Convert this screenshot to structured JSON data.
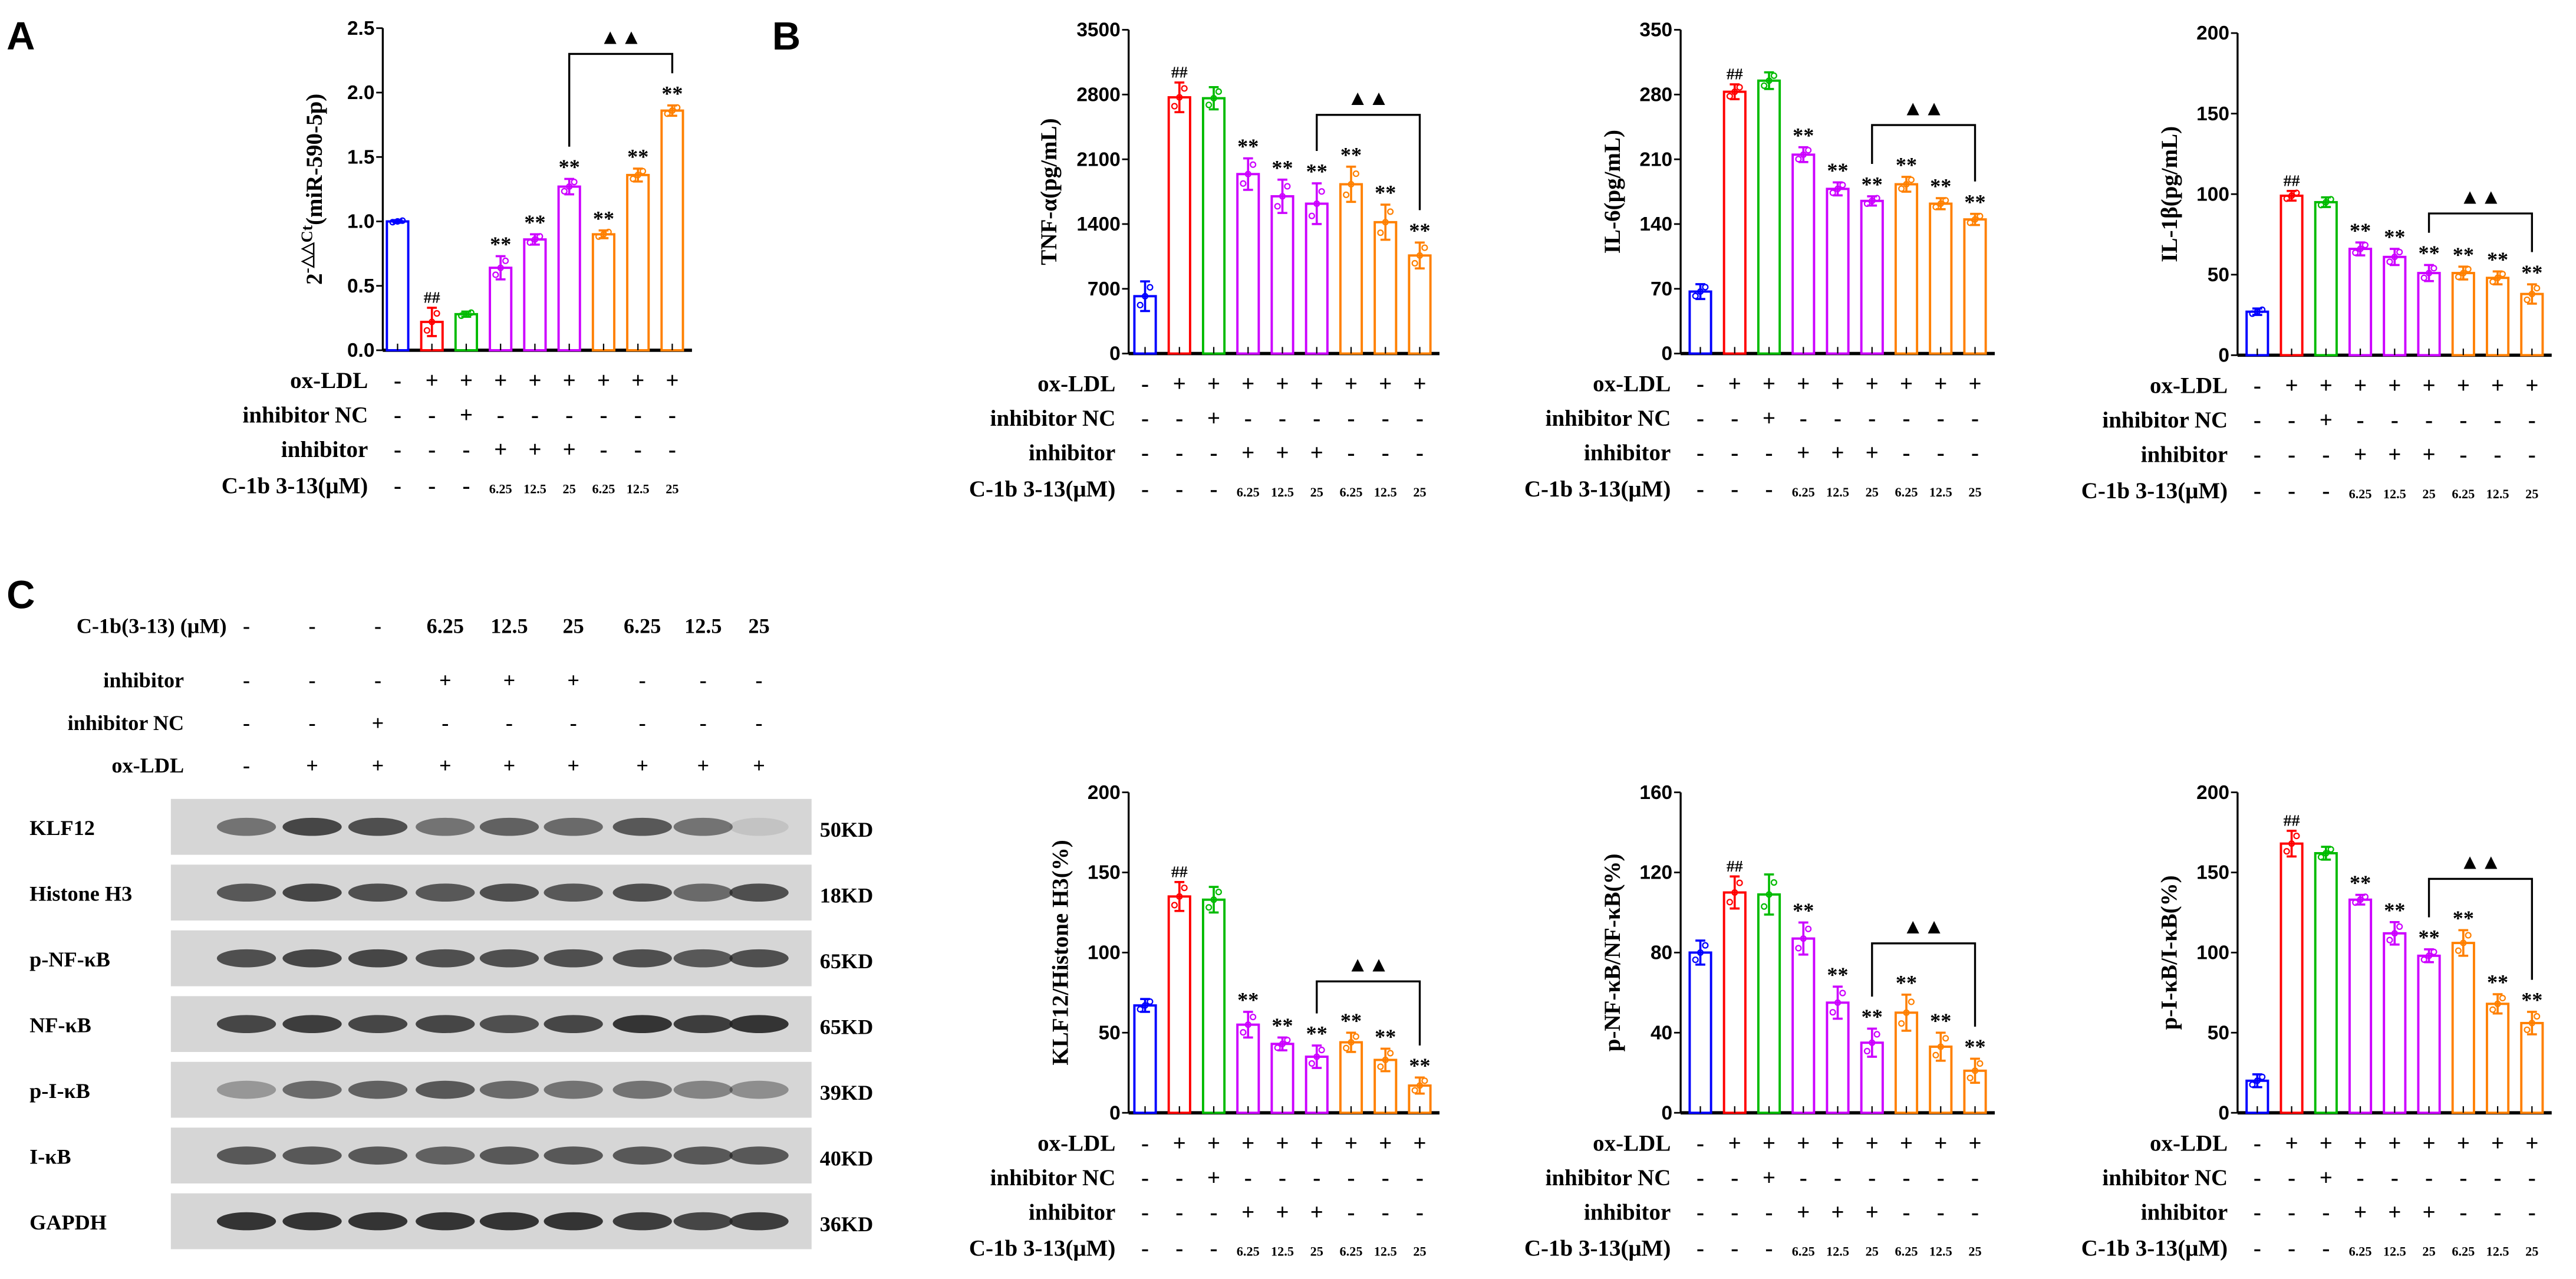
{
  "panel_labels": {
    "a": "A",
    "b": "B",
    "c": "C"
  },
  "colors": {
    "control": "#0000ff",
    "model": "#ff0000",
    "inhibitor_nc": "#00bb00",
    "inhibitor": "#cc00ff",
    "compound": "#ff8000"
  },
  "conditions": {
    "rows": [
      {
        "label": "ox-LDL",
        "values": [
          "-",
          "+",
          "+",
          "+",
          "+",
          "+",
          "+",
          "+",
          "+"
        ]
      },
      {
        "label": "inhibitor NC",
        "values": [
          "-",
          "-",
          "+",
          "-",
          "-",
          "-",
          "-",
          "-",
          "-"
        ]
      },
      {
        "label": "inhibitor",
        "values": [
          "-",
          "-",
          "-",
          "+",
          "+",
          "+",
          "-",
          "-",
          "-"
        ]
      },
      {
        "label": "C-1b 3-13(μM)",
        "values": [
          "-",
          "-",
          "-",
          "6.25",
          "12.5",
          "25",
          "6.25",
          "12.5",
          "25"
        ]
      }
    ]
  },
  "bracket_symbol": "▲▲",
  "chart_data": [
    {
      "id": "mir590",
      "type": "bar",
      "ylabel": "(miR-590-5p)",
      "ylabel_base": "2",
      "ylabel_sup": "-△△Ct",
      "ylim": [
        0,
        2.5
      ],
      "ticks": [
        "0.0",
        "0.5",
        "1.0",
        "1.5",
        "2.0",
        "2.5"
      ],
      "values": [
        1.0,
        0.22,
        0.28,
        0.64,
        0.86,
        1.27,
        0.9,
        1.36,
        1.86
      ],
      "errors": [
        0.01,
        0.11,
        0.02,
        0.09,
        0.04,
        0.06,
        0.03,
        0.05,
        0.04
      ],
      "marks": [
        "",
        "##",
        "",
        "**",
        "**",
        "**",
        "**",
        "**",
        "**"
      ]
    },
    {
      "id": "tnf",
      "type": "bar",
      "ylabel": "TNF-α(pg/mL)",
      "ylim": [
        0,
        3500
      ],
      "ticks": [
        "0",
        "700",
        "1400",
        "2100",
        "2800",
        "3500"
      ],
      "values": [
        620,
        2770,
        2760,
        1940,
        1700,
        1620,
        1830,
        1420,
        1060
      ],
      "errors": [
        160,
        160,
        120,
        170,
        180,
        220,
        190,
        190,
        140
      ],
      "marks": [
        "",
        "##",
        "",
        "**",
        "**",
        "**",
        "**",
        "**",
        "**"
      ]
    },
    {
      "id": "il6",
      "type": "bar",
      "ylabel": "IL-6(pg/mL)",
      "ylim": [
        0,
        350
      ],
      "ticks": [
        "0",
        "70",
        "140",
        "210",
        "280",
        "350"
      ],
      "values": [
        67,
        283,
        295,
        215,
        178,
        165,
        183,
        162,
        145
      ],
      "errors": [
        8,
        8,
        9,
        8,
        7,
        5,
        8,
        6,
        6
      ],
      "marks": [
        "",
        "##",
        "",
        "**",
        "**",
        "**",
        "**",
        "**",
        "**"
      ]
    },
    {
      "id": "il1b",
      "type": "bar",
      "ylabel": "IL-1β(pg/mL)",
      "ylim": [
        0,
        200
      ],
      "ticks": [
        "0",
        "50",
        "100",
        "150",
        "200"
      ],
      "values": [
        27,
        99,
        95,
        66,
        61,
        51,
        51,
        48,
        38
      ],
      "errors": [
        2,
        3,
        3,
        4,
        5,
        5,
        4,
        4,
        6
      ],
      "marks": [
        "",
        "##",
        "",
        "**",
        "**",
        "**",
        "**",
        "**",
        "**"
      ]
    },
    {
      "id": "klf12",
      "type": "bar",
      "ylabel": "KLF12/Histone H3(%)",
      "ylim": [
        0,
        200
      ],
      "ticks": [
        "0",
        "50",
        "100",
        "150",
        "200"
      ],
      "values": [
        67,
        135,
        133,
        55,
        43,
        35,
        44,
        33,
        17
      ],
      "errors": [
        4,
        9,
        8,
        8,
        4,
        7,
        6,
        7,
        5
      ],
      "marks": [
        "",
        "##",
        "",
        "**",
        "**",
        "**",
        "**",
        "**",
        "**"
      ]
    },
    {
      "id": "pnfkb",
      "type": "bar",
      "ylabel": "p-NF-κB/NF-κB(%)",
      "ylim": [
        0,
        160
      ],
      "ticks": [
        "0",
        "40",
        "80",
        "120",
        "160"
      ],
      "values": [
        80,
        110,
        109,
        87,
        55,
        35,
        50,
        33,
        21
      ],
      "errors": [
        6,
        8,
        10,
        8,
        8,
        7,
        9,
        7,
        6
      ],
      "marks": [
        "",
        "##",
        "",
        "**",
        "**",
        "**",
        "**",
        "**",
        "**"
      ]
    },
    {
      "id": "pikb",
      "type": "bar",
      "ylabel": "p-I-κB/I-κB(%)",
      "ylim": [
        0,
        200
      ],
      "ticks": [
        "0",
        "50",
        "100",
        "150",
        "200"
      ],
      "values": [
        20,
        168,
        162,
        133,
        112,
        98,
        106,
        68,
        56
      ],
      "errors": [
        4,
        8,
        4,
        3,
        7,
        4,
        8,
        6,
        7
      ],
      "marks": [
        "",
        "##",
        "",
        "**",
        "**",
        "**",
        "**",
        "**",
        "**"
      ]
    }
  ],
  "blot": {
    "header_rows": [
      {
        "label": "C-1b(3-13) (μM)",
        "values": [
          "-",
          "-",
          "-",
          "6.25",
          "12.5",
          "25",
          "6.25",
          "12.5",
          "25"
        ]
      },
      {
        "label": "inhibitor",
        "values": [
          "-",
          "-",
          "-",
          "+",
          "+",
          "+",
          "-",
          "-",
          "-"
        ]
      },
      {
        "label": "inhibitor NC",
        "values": [
          "-",
          "-",
          "+",
          "-",
          "-",
          "-",
          "-",
          "-",
          "-"
        ]
      },
      {
        "label": "ox-LDL",
        "values": [
          "-",
          "+",
          "+",
          "+",
          "+",
          "+",
          "+",
          "+",
          "+"
        ]
      }
    ],
    "bands": [
      {
        "protein": "KLF12",
        "size": "50KD",
        "intensity": [
          0.55,
          0.8,
          0.75,
          0.55,
          0.65,
          0.6,
          0.7,
          0.55,
          0.1
        ]
      },
      {
        "protein": "Histone H3",
        "size": "18KD",
        "intensity": [
          0.7,
          0.8,
          0.75,
          0.7,
          0.75,
          0.7,
          0.75,
          0.6,
          0.75
        ]
      },
      {
        "protein": "p-NF-κB",
        "size": "65KD",
        "intensity": [
          0.75,
          0.8,
          0.8,
          0.75,
          0.75,
          0.75,
          0.75,
          0.7,
          0.75
        ]
      },
      {
        "protein": "NF-κB",
        "size": "65KD",
        "intensity": [
          0.8,
          0.85,
          0.8,
          0.8,
          0.75,
          0.8,
          0.9,
          0.85,
          0.9
        ]
      },
      {
        "protein": "p-I-κB",
        "size": "39KD",
        "intensity": [
          0.35,
          0.6,
          0.65,
          0.7,
          0.6,
          0.55,
          0.55,
          0.45,
          0.4
        ]
      },
      {
        "protein": "I-κB",
        "size": "40KD",
        "intensity": [
          0.7,
          0.7,
          0.7,
          0.65,
          0.7,
          0.7,
          0.7,
          0.7,
          0.7
        ]
      },
      {
        "protein": "GAPDH",
        "size": "36KD",
        "intensity": [
          0.9,
          0.9,
          0.9,
          0.9,
          0.9,
          0.9,
          0.85,
          0.8,
          0.85
        ]
      }
    ]
  }
}
